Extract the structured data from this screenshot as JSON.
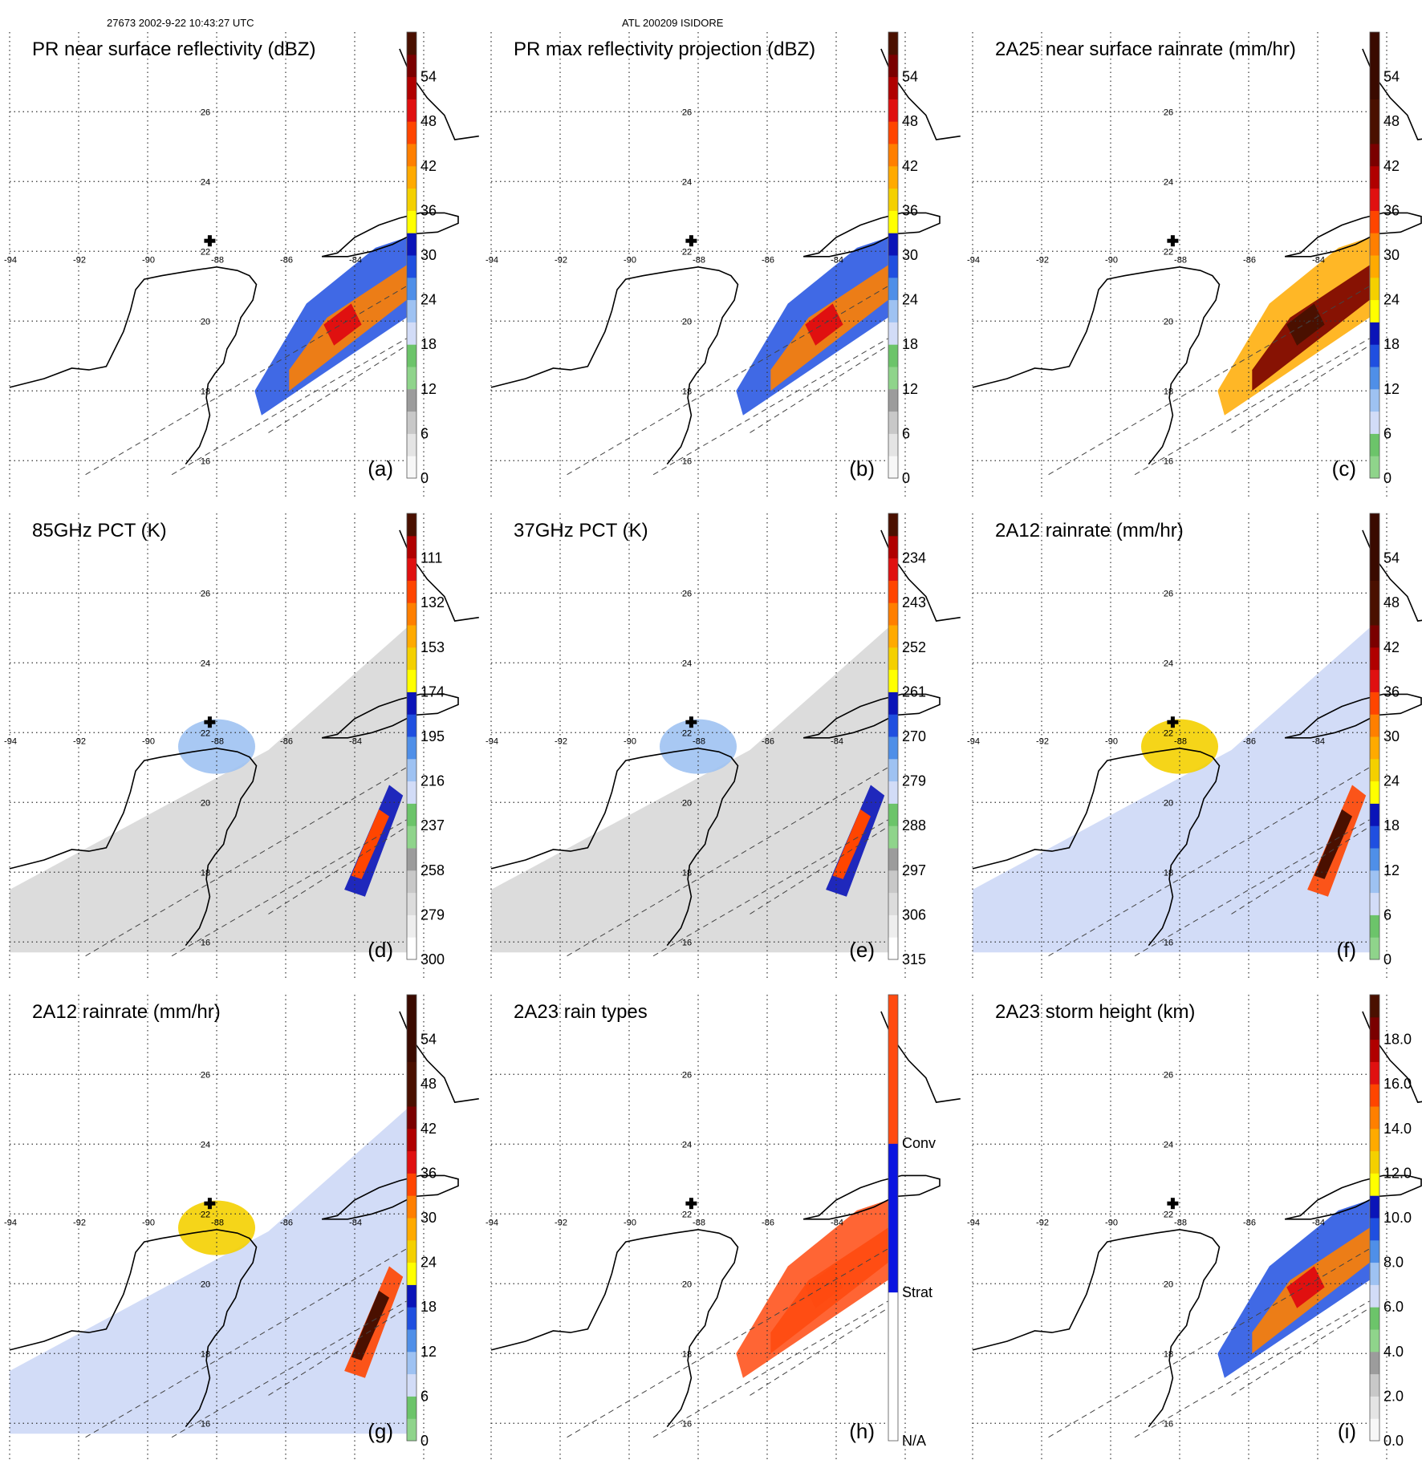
{
  "header": {
    "left": "27673 2002-9-22 10:43:27 UTC",
    "center": "ATL 200209 ISIDORE"
  },
  "grid": {
    "lon_labels": [
      "-94",
      "-92",
      "-90",
      "-88",
      "-86",
      "-84"
    ],
    "lat_labels": [
      "26",
      "24",
      "22",
      "20",
      "18",
      "16"
    ]
  },
  "panels": [
    {
      "title": "PR near surface reflectivity (dBZ)",
      "label": "(a)",
      "field": "swath",
      "ticks": [
        "0",
        "6",
        "12",
        "18",
        "24",
        "30",
        "36",
        "42",
        "48",
        "54"
      ],
      "colors": [
        "#f7f7f7",
        "#e4e4e4",
        "#c8c8c8",
        "#9c9c9c",
        "#8fd48b",
        "#6cc46a",
        "#d2dcf7",
        "#9ec2f2",
        "#4f8fe8",
        "#1f4fe0",
        "#0a14b8",
        "#ffff00",
        "#f4d000",
        "#ffaa00",
        "#ff7f00",
        "#ff4500",
        "#e01010",
        "#b00000",
        "#7a0000",
        "#4a1000"
      ]
    },
    {
      "title": "PR max reflectivity projection (dBZ)",
      "label": "(b)",
      "field": "swath",
      "ticks": [
        "0",
        "6",
        "12",
        "18",
        "24",
        "30",
        "36",
        "42",
        "48",
        "54"
      ],
      "colors": [
        "#f7f7f7",
        "#e4e4e4",
        "#c8c8c8",
        "#9c9c9c",
        "#8fd48b",
        "#6cc46a",
        "#d2dcf7",
        "#9ec2f2",
        "#4f8fe8",
        "#1f4fe0",
        "#0a14b8",
        "#ffff00",
        "#f4d000",
        "#ffaa00",
        "#ff7f00",
        "#ff4500",
        "#e01010",
        "#b00000",
        "#7a0000",
        "#4a1000"
      ]
    },
    {
      "title": "2A25 near surface rainrate (mm/hr)",
      "label": "(c)",
      "field": "swath",
      "ticks": [
        "0",
        "6",
        "12",
        "18",
        "24",
        "30",
        "36",
        "42",
        "48",
        "54"
      ],
      "colors": [
        "#8fd48b",
        "#6cc46a",
        "#d2dcf7",
        "#9ec2f2",
        "#4f8fe8",
        "#1f4fe0",
        "#0a14b8",
        "#ffff00",
        "#f4d000",
        "#ffaa00",
        "#ff7f00",
        "#ff4500",
        "#e01010",
        "#b00000",
        "#7a0000",
        "#4a1000",
        "#4a1000",
        "#3a0a00",
        "#3a0a00",
        "#3a0a00"
      ]
    },
    {
      "title": "85GHz PCT (K)",
      "label": "(d)",
      "field": "wide",
      "ticks": [
        "300",
        "279",
        "258",
        "237",
        "216",
        "195",
        "174",
        "153",
        "132",
        "111"
      ],
      "colors": [
        "#ffffff",
        "#eeeeee",
        "#dcdcdc",
        "#c8c8c8",
        "#9c9c9c",
        "#8fd48b",
        "#6cc46a",
        "#d2dcf7",
        "#9ec2f2",
        "#4f8fe8",
        "#1f4fe0",
        "#0a14b8",
        "#ffff00",
        "#f4d000",
        "#ffaa00",
        "#ff7f00",
        "#ff4500",
        "#e01010",
        "#b00000",
        "#4a1000"
      ]
    },
    {
      "title": "37GHz PCT (K)",
      "label": "(e)",
      "field": "wide",
      "ticks": [
        "315",
        "306",
        "297",
        "288",
        "279",
        "270",
        "261",
        "252",
        "243",
        "234"
      ],
      "colors": [
        "#ffffff",
        "#eeeeee",
        "#dcdcdc",
        "#c8c8c8",
        "#9c9c9c",
        "#8fd48b",
        "#6cc46a",
        "#d2dcf7",
        "#9ec2f2",
        "#4f8fe8",
        "#1f4fe0",
        "#0a14b8",
        "#ffff00",
        "#f4d000",
        "#ffaa00",
        "#ff7f00",
        "#ff4500",
        "#e01010",
        "#b00000",
        "#4a1000"
      ]
    },
    {
      "title": "2A12 rainrate (mm/hr)",
      "label": "(f)",
      "field": "wide",
      "ticks": [
        "0",
        "6",
        "12",
        "18",
        "24",
        "30",
        "36",
        "42",
        "48",
        "54"
      ],
      "colors": [
        "#8fd48b",
        "#6cc46a",
        "#d2dcf7",
        "#9ec2f2",
        "#4f8fe8",
        "#1f4fe0",
        "#0a14b8",
        "#ffff00",
        "#f4d000",
        "#ffaa00",
        "#ff7f00",
        "#ff4500",
        "#e01010",
        "#b00000",
        "#7a0000",
        "#4a1000",
        "#4a1000",
        "#3a0a00",
        "#3a0a00",
        "#3a0a00"
      ]
    },
    {
      "title": "2A12 rainrate (mm/hr)",
      "label": "(g)",
      "field": "wide",
      "ticks": [
        "0",
        "6",
        "12",
        "18",
        "24",
        "30",
        "36",
        "42",
        "48",
        "54"
      ],
      "colors": [
        "#8fd48b",
        "#6cc46a",
        "#d2dcf7",
        "#9ec2f2",
        "#4f8fe8",
        "#1f4fe0",
        "#0a14b8",
        "#ffff00",
        "#f4d000",
        "#ffaa00",
        "#ff7f00",
        "#ff4500",
        "#e01010",
        "#b00000",
        "#7a0000",
        "#4a1000",
        "#4a1000",
        "#3a0a00",
        "#3a0a00",
        "#3a0a00"
      ]
    },
    {
      "title": "2A23 rain types",
      "label": "(h)",
      "field": "swath",
      "ticks": [
        "N/A",
        "Strat",
        "Conv"
      ],
      "colors": [
        "#ffffff",
        "#0a14e0",
        "#ff4a10"
      ]
    },
    {
      "title": "2A23 storm height (km)",
      "label": "(i)",
      "field": "swath",
      "ticks": [
        "0.0",
        "2.0",
        "4.0",
        "6.0",
        "8.0",
        "10.0",
        "12.0",
        "14.0",
        "16.0",
        "18.0"
      ],
      "colors": [
        "#f7f7f7",
        "#e4e4e4",
        "#c8c8c8",
        "#9c9c9c",
        "#8fd48b",
        "#6cc46a",
        "#d2dcf7",
        "#9ec2f2",
        "#4f8fe8",
        "#1f4fe0",
        "#0a14b8",
        "#ffff00",
        "#f4d000",
        "#ffaa00",
        "#ff7f00",
        "#ff4500",
        "#e01010",
        "#b00000",
        "#7a0000",
        "#4a1000"
      ]
    }
  ]
}
